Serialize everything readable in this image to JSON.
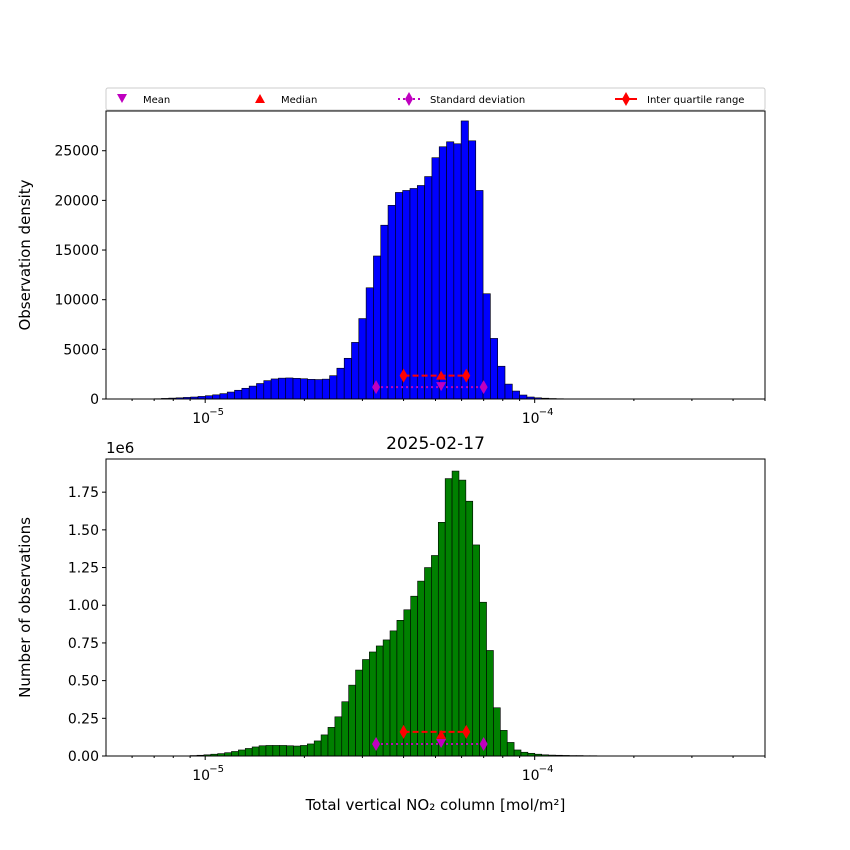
{
  "legend": {
    "placement": "top",
    "items": [
      {
        "label": "Mean",
        "marker": "triangle-down",
        "color": "#bf00bf"
      },
      {
        "label": "Median",
        "marker": "triangle-up",
        "color": "#ff0000"
      },
      {
        "label": "Standard deviation",
        "marker": "diamond-dotted",
        "color": "#bf00bf"
      },
      {
        "label": "Inter quartile range",
        "marker": "diamond-solid",
        "color": "#ff0000"
      }
    ]
  },
  "chart_data": [
    {
      "type": "bar",
      "title": "",
      "xlabel": "",
      "ylabel": "Observation density",
      "xscale": "log",
      "xlim": [
        5e-06,
        0.0005
      ],
      "ylim": [
        0,
        29000
      ],
      "yticks": [
        0,
        5000,
        10000,
        15000,
        20000,
        25000
      ],
      "ytick_labels": [
        "0",
        "5000",
        "10000",
        "15000",
        "20000",
        "25000"
      ],
      "xticks": [
        1e-05,
        0.0001
      ],
      "xtick_labels": [
        "10",
        "10"
      ],
      "xtick_exponents": [
        "−5",
        "−4"
      ],
      "bar_color": "#0000ff",
      "bin_start": 7e-06,
      "bin_end": 0.00015,
      "values": [
        30,
        60,
        90,
        120,
        160,
        200,
        260,
        330,
        420,
        540,
        700,
        880,
        1080,
        1300,
        1560,
        1850,
        2020,
        2100,
        2120,
        2080,
        2040,
        1980,
        1960,
        2000,
        2350,
        3100,
        4100,
        5700,
        8100,
        11200,
        14400,
        17500,
        19500,
        20800,
        21000,
        21200,
        21500,
        22400,
        24300,
        25400,
        25900,
        25700,
        28000,
        26000,
        21000,
        10600,
        6100,
        3300,
        1500,
        800,
        400,
        200,
        120,
        80,
        50,
        30,
        20,
        20,
        10,
        10
      ],
      "mean": {
        "x": 5.2e-05,
        "y": 1200
      },
      "median": {
        "x": 5.2e-05,
        "y": 2350
      },
      "std_range": {
        "x": [
          3.3e-05,
          7e-05
        ],
        "y": 1200
      },
      "iqr_range": {
        "x": [
          4e-05,
          6.2e-05
        ],
        "y": 2350
      }
    },
    {
      "type": "bar",
      "title": "2025-02-17",
      "xlabel": "Total vertical NO₂ column [mol/m²]",
      "ylabel": "Number of observations",
      "y_offset_label": "1e6",
      "xscale": "log",
      "xlim": [
        5e-06,
        0.0005
      ],
      "ylim": [
        0,
        1.97
      ],
      "yticks": [
        0,
        0.25,
        0.5,
        0.75,
        1.0,
        1.25,
        1.5,
        1.75
      ],
      "ytick_labels": [
        "0.00",
        "0.25",
        "0.50",
        "0.75",
        "1.00",
        "1.25",
        "1.50",
        "1.75"
      ],
      "xticks": [
        1e-05,
        0.0001
      ],
      "xtick_labels": [
        "10",
        "10"
      ],
      "xtick_exponents": [
        "−5",
        "−4"
      ],
      "bar_color": "#008000",
      "bin_start": 9e-06,
      "bin_end": 0.00017,
      "values": [
        0.003,
        0.005,
        0.008,
        0.012,
        0.016,
        0.022,
        0.03,
        0.04,
        0.05,
        0.06,
        0.068,
        0.07,
        0.07,
        0.07,
        0.068,
        0.066,
        0.07,
        0.08,
        0.1,
        0.14,
        0.19,
        0.26,
        0.36,
        0.47,
        0.57,
        0.64,
        0.69,
        0.73,
        0.77,
        0.83,
        0.9,
        0.97,
        1.06,
        1.16,
        1.25,
        1.33,
        1.55,
        1.84,
        1.89,
        1.83,
        1.69,
        1.4,
        1.02,
        0.7,
        0.32,
        0.17,
        0.09,
        0.04,
        0.025,
        0.018,
        0.012,
        0.008,
        0.006,
        0.005,
        0.004,
        0.003,
        0.003,
        0.002,
        0.002,
        0.001,
        0.001
      ],
      "mean": {
        "x": 5.2e-05,
        "y": 0.08
      },
      "median": {
        "x": 5.2e-05,
        "y": 0.14
      },
      "std_range": {
        "x": [
          3.3e-05,
          7e-05
        ],
        "y": 0.08
      },
      "iqr_range": {
        "x": [
          4e-05,
          6.2e-05
        ],
        "y": 0.16
      }
    }
  ]
}
